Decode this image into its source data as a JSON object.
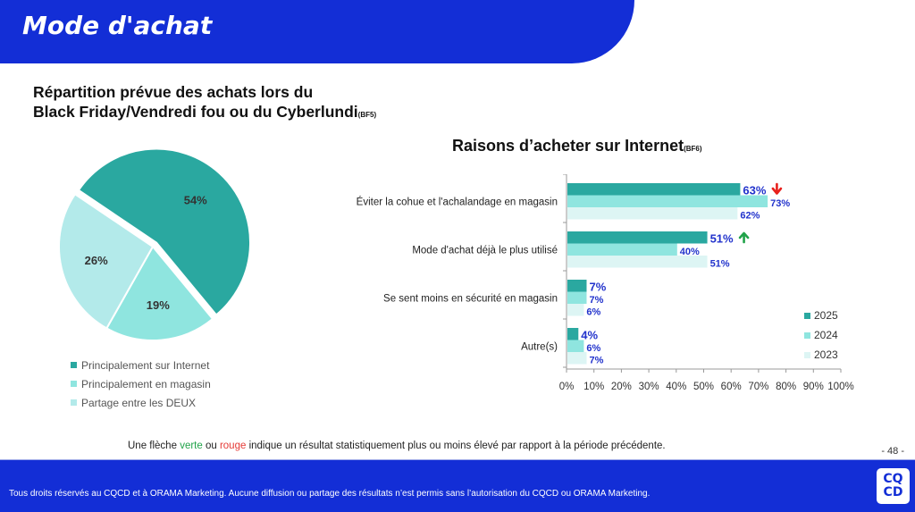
{
  "header": {
    "title": "Mode d'achat"
  },
  "pie_section": {
    "title_line1": "Répartition prévue des achats lors du",
    "title_line2": "Black Friday/Vendredi fou ou du Cyberlundi",
    "code": "(BF5)"
  },
  "bar_section": {
    "title": "Raisons d’acheter sur Internet",
    "code": "(BF6)"
  },
  "colors": {
    "brand": "#132ED6",
    "dark_teal": "#2AA8A0",
    "mid_teal": "#8FE5DF",
    "light_teal": "#DDF5F4",
    "pie_light": "#B3EAEA",
    "label_blue": "#2233CC",
    "arrow_up": "#21A34A",
    "arrow_down": "#E8201C"
  },
  "chart_data": [
    {
      "type": "pie",
      "title": "Répartition prévue des achats lors du Black Friday/Vendredi fou ou du Cyberlundi (BF5)",
      "slices": [
        {
          "label": "Principalement sur Internet",
          "value": 54,
          "display": "54%",
          "color": "#2AA8A0"
        },
        {
          "label": "Principalement en magasin",
          "value": 19,
          "display": "19%",
          "color": "#8FE5DF"
        },
        {
          "label": "Partage entre les DEUX",
          "value": 26,
          "display": "26%",
          "color": "#B3EAEA"
        }
      ],
      "legend_position": "bottom"
    },
    {
      "type": "bar",
      "orientation": "horizontal",
      "title": "Raisons d’acheter sur Internet (BF6)",
      "categories": [
        "Éviter la cohue et l'achalandage en magasin",
        "Mode d'achat déjà le plus utilisé",
        "Se sent moins en sécurité en magasin",
        "Autre(s)"
      ],
      "series": [
        {
          "name": "2025",
          "color": "#2AA8A0",
          "values": [
            63,
            51,
            7,
            4
          ],
          "labels": [
            "63%",
            "51%",
            "7%",
            "4%"
          ],
          "arrows": [
            "down",
            "up",
            "",
            ""
          ]
        },
        {
          "name": "2024",
          "color": "#8FE5DF",
          "values": [
            73,
            40,
            7,
            6
          ],
          "labels": [
            "73%",
            "40%",
            "7%",
            "6%"
          ]
        },
        {
          "name": "2023",
          "color": "#DDF5F4",
          "values": [
            62,
            51,
            6,
            7
          ],
          "labels": [
            "62%",
            "51%",
            "6%",
            "7%"
          ]
        }
      ],
      "xlim": [
        0,
        100
      ],
      "xticks": [
        "0%",
        "10%",
        "20%",
        "30%",
        "40%",
        "50%",
        "60%",
        "70%",
        "80%",
        "90%",
        "100%"
      ],
      "legend_position": "right",
      "grid": false
    }
  ],
  "note": {
    "part1": "Une flèche ",
    "green_word": "verte",
    "part2": " ou ",
    "red_word": "rouge",
    "part3": " indique un résultat statistiquement plus ou moins élevé par rapport à la période précédente."
  },
  "page_number": "- 48 -",
  "footer": {
    "text": "Tous droits réservés au CQCD et à ORAMA Marketing. Aucune diffusion ou partage des résultats n’est permis sans l’autorisation du CQCD ou ORAMA Marketing.",
    "logo_line1": "CQ",
    "logo_line2": "CD"
  }
}
